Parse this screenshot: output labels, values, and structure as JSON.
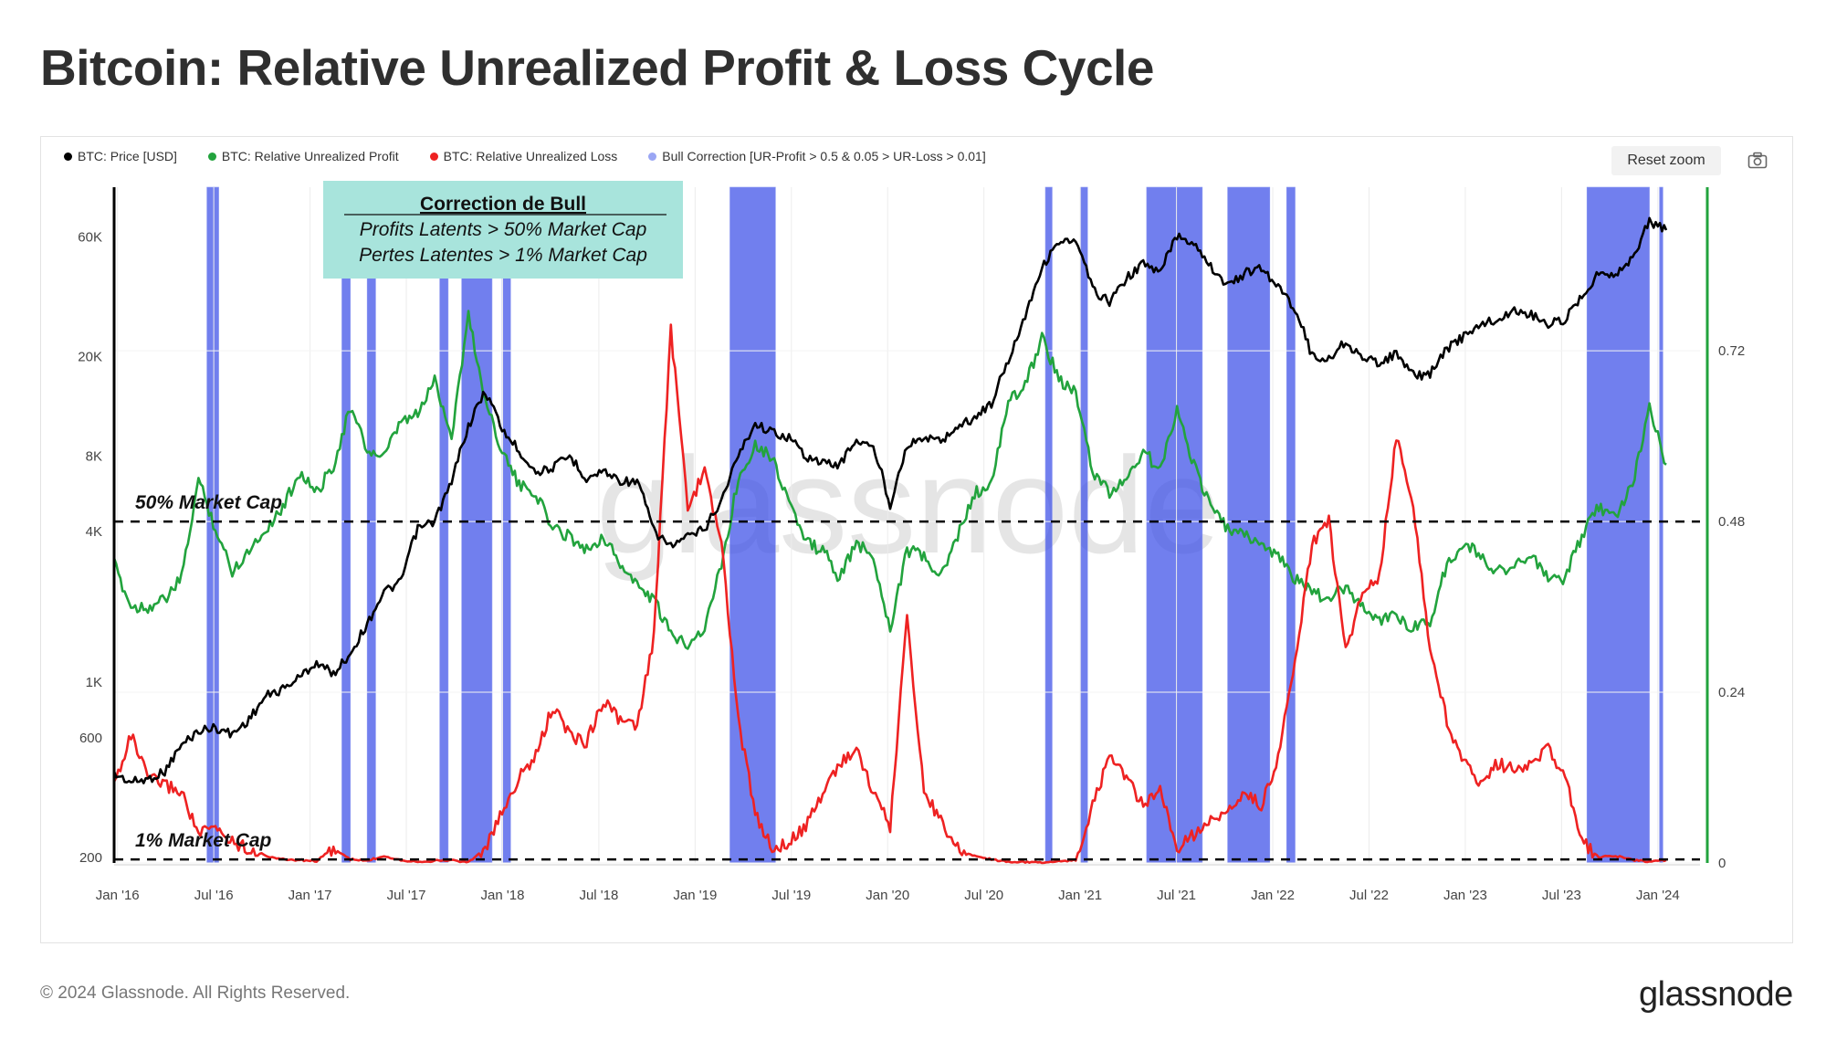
{
  "title": "Bitcoin: Relative Unrealized Profit & Loss Cycle",
  "legend": [
    {
      "label": "BTC: Price [USD]",
      "color": "#000000"
    },
    {
      "label": "BTC: Relative Unrealized Profit",
      "color": "#22a33d"
    },
    {
      "label": "BTC: Relative Unrealized Loss",
      "color": "#ee2222"
    },
    {
      "label": "Bull Correction [UR-Profit > 0.5 & 0.05 > UR-Loss > 0.01]",
      "color": "#9aa6f4"
    }
  ],
  "toolbar": {
    "reset_zoom": "Reset zoom",
    "camera_icon": "camera-icon"
  },
  "annotation": {
    "title": "Correction de Bull",
    "line1": "Profits Latents > 50% Market Cap",
    "line2": "Pertes Latentes > 1% Market Cap",
    "bg_color": "#a8e4dc"
  },
  "reference_lines": [
    {
      "label": "50% Market Cap",
      "value": 0.5
    },
    {
      "label": "1% Market Cap",
      "value": 0.01
    }
  ],
  "watermark": "glassnode",
  "footer": {
    "copyright": "© 2024 Glassnode. All Rights Reserved.",
    "logo": "glassnode"
  },
  "chart_data": {
    "type": "line",
    "x_ticks": [
      "Jan '16",
      "Jul '16",
      "Jan '17",
      "Jul '17",
      "Jan '18",
      "Jul '18",
      "Jan '19",
      "Jul '19",
      "Jan '20",
      "Jul '20",
      "Jan '21",
      "Jul '21",
      "Jan '22",
      "Jul '22",
      "Jan '23",
      "Jul '23",
      "Jan '24"
    ],
    "y_left": {
      "scale": "log",
      "range": [
        190,
        95000
      ],
      "ticks": [
        {
          "v": 200,
          "label": "200"
        },
        {
          "v": 600,
          "label": "600"
        },
        {
          "v": 1000,
          "label": "1K"
        },
        {
          "v": 4000,
          "label": "4K"
        },
        {
          "v": 8000,
          "label": "8K"
        },
        {
          "v": 20000,
          "label": "20K"
        },
        {
          "v": 60000,
          "label": "60K"
        }
      ]
    },
    "y_right": {
      "scale": "linear",
      "range": [
        0,
        0.95
      ],
      "ticks": [
        {
          "v": 0,
          "label": "0"
        },
        {
          "v": 0.24,
          "label": "0.24"
        },
        {
          "v": 0.48,
          "label": "0.48"
        },
        {
          "v": 0.72,
          "label": "0.72"
        }
      ]
    },
    "series": [
      {
        "name": "BTC: Price [USD]",
        "axis": "left",
        "color": "#000000",
        "points": [
          [
            0,
            430
          ],
          [
            1,
            400
          ],
          [
            2,
            410
          ],
          [
            3,
            440
          ],
          [
            4,
            560
          ],
          [
            5,
            640
          ],
          [
            6,
            660
          ],
          [
            7,
            620
          ],
          [
            8,
            710
          ],
          [
            9,
            880
          ],
          [
            10,
            940
          ],
          [
            11,
            1050
          ],
          [
            12,
            1200
          ],
          [
            13,
            1080
          ],
          [
            14,
            1300
          ],
          [
            15,
            1700
          ],
          [
            16,
            2300
          ],
          [
            17,
            2500
          ],
          [
            18,
            4100
          ],
          [
            19,
            4400
          ],
          [
            20,
            6200
          ],
          [
            21,
            10500
          ],
          [
            22,
            14500
          ],
          [
            23,
            10200
          ],
          [
            24,
            8400
          ],
          [
            25,
            6900
          ],
          [
            26,
            7200
          ],
          [
            27,
            8000
          ],
          [
            28,
            6500
          ],
          [
            29,
            7000
          ],
          [
            30,
            6400
          ],
          [
            31,
            6300
          ],
          [
            32,
            4000
          ],
          [
            33,
            3500
          ],
          [
            34,
            3800
          ],
          [
            35,
            4100
          ],
          [
            36,
            5300
          ],
          [
            37,
            8000
          ],
          [
            38,
            10800
          ],
          [
            39,
            10000
          ],
          [
            40,
            9500
          ],
          [
            41,
            8000
          ],
          [
            42,
            7500
          ],
          [
            43,
            7400
          ],
          [
            44,
            9300
          ],
          [
            45,
            8600
          ],
          [
            46,
            5000
          ],
          [
            47,
            8800
          ],
          [
            48,
            9500
          ],
          [
            49,
            9200
          ],
          [
            50,
            10500
          ],
          [
            51,
            11400
          ],
          [
            52,
            13000
          ],
          [
            53,
            19000
          ],
          [
            54,
            29000
          ],
          [
            55,
            45000
          ],
          [
            56,
            58000
          ],
          [
            57,
            57000
          ],
          [
            58,
            37000
          ],
          [
            59,
            33000
          ],
          [
            60,
            41000
          ],
          [
            61,
            47000
          ],
          [
            62,
            43000
          ],
          [
            63,
            61000
          ],
          [
            64,
            57000
          ],
          [
            65,
            46000
          ],
          [
            66,
            38000
          ],
          [
            67,
            43000
          ],
          [
            68,
            45000
          ],
          [
            69,
            38000
          ],
          [
            70,
            31000
          ],
          [
            71,
            20000
          ],
          [
            72,
            19500
          ],
          [
            73,
            23000
          ],
          [
            74,
            19500
          ],
          [
            75,
            19000
          ],
          [
            76,
            20500
          ],
          [
            77,
            16800
          ],
          [
            78,
            17000
          ],
          [
            79,
            21500
          ],
          [
            80,
            24000
          ],
          [
            81,
            27000
          ],
          [
            82,
            28000
          ],
          [
            83,
            30500
          ],
          [
            84,
            29500
          ],
          [
            85,
            27000
          ],
          [
            86,
            28000
          ],
          [
            87,
            35000
          ],
          [
            88,
            43000
          ],
          [
            89,
            43000
          ],
          [
            90,
            49000
          ],
          [
            91,
            69000
          ],
          [
            92,
            64000
          ]
        ]
      },
      {
        "name": "BTC: Relative Unrealized Profit",
        "axis": "right",
        "color": "#22a33d",
        "points": [
          [
            0,
            0.42
          ],
          [
            1,
            0.36
          ],
          [
            2,
            0.36
          ],
          [
            3,
            0.37
          ],
          [
            4,
            0.4
          ],
          [
            5,
            0.54
          ],
          [
            6,
            0.47
          ],
          [
            7,
            0.41
          ],
          [
            8,
            0.44
          ],
          [
            9,
            0.47
          ],
          [
            10,
            0.5
          ],
          [
            11,
            0.55
          ],
          [
            12,
            0.52
          ],
          [
            13,
            0.56
          ],
          [
            14,
            0.64
          ],
          [
            15,
            0.58
          ],
          [
            16,
            0.57
          ],
          [
            17,
            0.62
          ],
          [
            18,
            0.63
          ],
          [
            19,
            0.68
          ],
          [
            20,
            0.6
          ],
          [
            21,
            0.77
          ],
          [
            22,
            0.65
          ],
          [
            23,
            0.58
          ],
          [
            24,
            0.53
          ],
          [
            25,
            0.52
          ],
          [
            26,
            0.47
          ],
          [
            27,
            0.46
          ],
          [
            28,
            0.44
          ],
          [
            29,
            0.46
          ],
          [
            30,
            0.42
          ],
          [
            31,
            0.39
          ],
          [
            32,
            0.37
          ],
          [
            33,
            0.32
          ],
          [
            34,
            0.31
          ],
          [
            35,
            0.33
          ],
          [
            36,
            0.42
          ],
          [
            37,
            0.54
          ],
          [
            38,
            0.59
          ],
          [
            39,
            0.57
          ],
          [
            40,
            0.51
          ],
          [
            41,
            0.45
          ],
          [
            42,
            0.44
          ],
          [
            43,
            0.4
          ],
          [
            44,
            0.45
          ],
          [
            45,
            0.43
          ],
          [
            46,
            0.33
          ],
          [
            47,
            0.44
          ],
          [
            48,
            0.43
          ],
          [
            49,
            0.4
          ],
          [
            50,
            0.46
          ],
          [
            51,
            0.52
          ],
          [
            52,
            0.53
          ],
          [
            53,
            0.65
          ],
          [
            54,
            0.67
          ],
          [
            55,
            0.74
          ],
          [
            56,
            0.68
          ],
          [
            57,
            0.66
          ],
          [
            58,
            0.55
          ],
          [
            59,
            0.52
          ],
          [
            60,
            0.54
          ],
          [
            61,
            0.58
          ],
          [
            62,
            0.55
          ],
          [
            63,
            0.64
          ],
          [
            64,
            0.56
          ],
          [
            65,
            0.5
          ],
          [
            66,
            0.47
          ],
          [
            67,
            0.46
          ],
          [
            68,
            0.45
          ],
          [
            69,
            0.43
          ],
          [
            70,
            0.4
          ],
          [
            71,
            0.38
          ],
          [
            72,
            0.37
          ],
          [
            73,
            0.39
          ],
          [
            74,
            0.36
          ],
          [
            75,
            0.34
          ],
          [
            76,
            0.35
          ],
          [
            77,
            0.33
          ],
          [
            78,
            0.34
          ],
          [
            79,
            0.42
          ],
          [
            80,
            0.45
          ],
          [
            81,
            0.43
          ],
          [
            82,
            0.41
          ],
          [
            83,
            0.42
          ],
          [
            84,
            0.43
          ],
          [
            85,
            0.4
          ],
          [
            86,
            0.4
          ],
          [
            87,
            0.46
          ],
          [
            88,
            0.5
          ],
          [
            89,
            0.49
          ],
          [
            90,
            0.53
          ],
          [
            91,
            0.64
          ],
          [
            92,
            0.56
          ]
        ]
      },
      {
        "name": "BTC: Relative Unrealized Loss",
        "axis": "right",
        "color": "#ee2222",
        "points": [
          [
            0,
            0.11
          ],
          [
            1,
            0.18
          ],
          [
            2,
            0.12
          ],
          [
            3,
            0.11
          ],
          [
            4,
            0.1
          ],
          [
            5,
            0.04
          ],
          [
            6,
            0.05
          ],
          [
            7,
            0.03
          ],
          [
            8,
            0.02
          ],
          [
            9,
            0.01
          ],
          [
            10,
            0.005
          ],
          [
            11,
            0.004
          ],
          [
            12,
            0.003
          ],
          [
            13,
            0.02
          ],
          [
            14,
            0.005
          ],
          [
            15,
            0.003
          ],
          [
            16,
            0.01
          ],
          [
            17,
            0.004
          ],
          [
            18,
            0.002
          ],
          [
            19,
            0.003
          ],
          [
            20,
            0.004
          ],
          [
            21,
            0.001
          ],
          [
            22,
            0.02
          ],
          [
            23,
            0.07
          ],
          [
            24,
            0.12
          ],
          [
            25,
            0.15
          ],
          [
            26,
            0.22
          ],
          [
            27,
            0.18
          ],
          [
            28,
            0.17
          ],
          [
            29,
            0.23
          ],
          [
            30,
            0.2
          ],
          [
            31,
            0.19
          ],
          [
            32,
            0.32
          ],
          [
            33,
            0.75
          ],
          [
            34,
            0.5
          ],
          [
            35,
            0.55
          ],
          [
            36,
            0.45
          ],
          [
            37,
            0.2
          ],
          [
            38,
            0.07
          ],
          [
            39,
            0.02
          ],
          [
            40,
            0.03
          ],
          [
            41,
            0.05
          ],
          [
            42,
            0.1
          ],
          [
            43,
            0.14
          ],
          [
            44,
            0.16
          ],
          [
            45,
            0.1
          ],
          [
            46,
            0.05
          ],
          [
            47,
            0.35
          ],
          [
            48,
            0.1
          ],
          [
            49,
            0.06
          ],
          [
            50,
            0.02
          ],
          [
            51,
            0.01
          ],
          [
            52,
            0.005
          ],
          [
            53,
            0.002
          ],
          [
            54,
            0.001
          ],
          [
            55,
            0.001
          ],
          [
            56,
            0.002
          ],
          [
            57,
            0.004
          ],
          [
            58,
            0.08
          ],
          [
            59,
            0.15
          ],
          [
            60,
            0.12
          ],
          [
            61,
            0.08
          ],
          [
            62,
            0.1
          ],
          [
            63,
            0.02
          ],
          [
            64,
            0.04
          ],
          [
            65,
            0.06
          ],
          [
            66,
            0.07
          ],
          [
            67,
            0.1
          ],
          [
            68,
            0.08
          ],
          [
            69,
            0.15
          ],
          [
            70,
            0.28
          ],
          [
            71,
            0.45
          ],
          [
            72,
            0.48
          ],
          [
            73,
            0.3
          ],
          [
            74,
            0.38
          ],
          [
            75,
            0.4
          ],
          [
            76,
            0.6
          ],
          [
            77,
            0.5
          ],
          [
            78,
            0.3
          ],
          [
            79,
            0.2
          ],
          [
            80,
            0.14
          ],
          [
            81,
            0.11
          ],
          [
            82,
            0.14
          ],
          [
            83,
            0.13
          ],
          [
            84,
            0.14
          ],
          [
            85,
            0.16
          ],
          [
            86,
            0.12
          ],
          [
            87,
            0.03
          ],
          [
            88,
            0.008
          ],
          [
            89,
            0.01
          ],
          [
            90,
            0.004
          ],
          [
            91,
            0.002
          ],
          [
            92,
            0.004
          ]
        ]
      }
    ],
    "bull_correction_bands": [
      [
        5.5,
        6.2
      ],
      [
        13.5,
        14.0
      ],
      [
        15.0,
        15.5
      ],
      [
        19.3,
        19.8
      ],
      [
        20.6,
        22.4
      ],
      [
        23.0,
        23.5
      ],
      [
        36.5,
        39.2
      ],
      [
        55.2,
        55.6
      ],
      [
        57.3,
        57.7
      ],
      [
        61.2,
        64.5
      ],
      [
        66.0,
        68.5
      ],
      [
        69.5,
        70.0
      ],
      [
        87.3,
        91.0
      ],
      [
        91.6,
        91.8
      ]
    ],
    "x_range": [
      0,
      94
    ]
  }
}
